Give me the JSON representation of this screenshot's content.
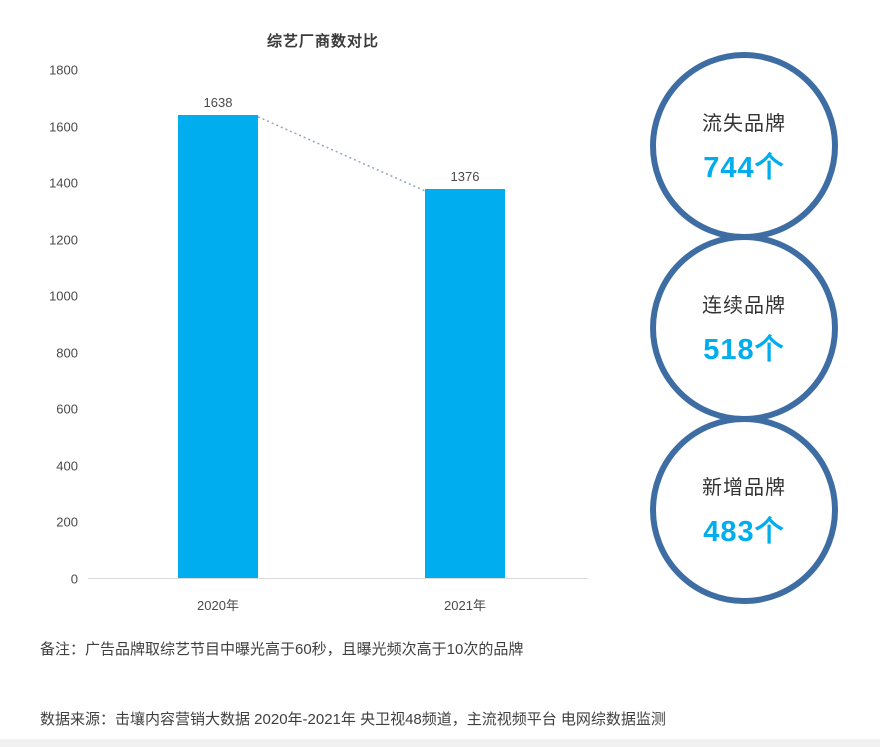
{
  "chart_data": {
    "type": "bar",
    "title": "综艺厂商数对比",
    "categories": [
      "2020年",
      "2021年"
    ],
    "values": [
      1638,
      1376
    ],
    "ylim": [
      0,
      1800
    ],
    "yticks": [
      0,
      200,
      400,
      600,
      800,
      1000,
      1200,
      1400,
      1600,
      1800
    ],
    "xlabel": "",
    "ylabel": "",
    "grid": false,
    "legend": false,
    "connector": "dotted line between bar tops"
  },
  "stats": [
    {
      "label": "流失品牌",
      "value": "744个"
    },
    {
      "label": "连续品牌",
      "value": "518个"
    },
    {
      "label": "新增品牌",
      "value": "483个"
    }
  ],
  "notes": {
    "note": "备注：广告品牌取综艺节目中曝光高于60秒，且曝光频次高于10次的品牌",
    "source": "数据来源：击壤内容营销大数据 2020年-2021年  央卫视48频道，主流视频平台 电网综数据监测"
  },
  "colors": {
    "bar": "#00aeef",
    "stat_value": "#00aeef",
    "circle_border": "#3e6da4",
    "connector_line": "#93a5bd",
    "axis_text": "#4a4a4a"
  }
}
